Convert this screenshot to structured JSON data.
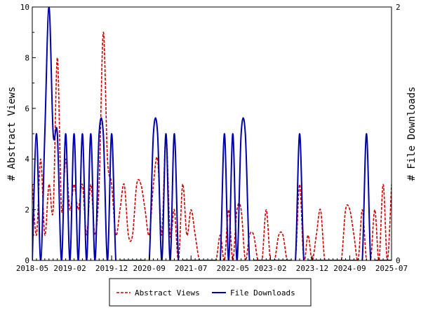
{
  "chart_data": {
    "type": "line",
    "ylabel_left": "# Abstract Views",
    "ylabel_right": "# File Downloads",
    "ylim_left": [
      0,
      10
    ],
    "ylim_right": [
      0,
      2
    ],
    "yticks_left": [
      "0",
      "2",
      "4",
      "6",
      "8",
      "10"
    ],
    "yticks_right": [
      "0",
      "2"
    ],
    "xlim": [
      "2018-05",
      "2025-07"
    ],
    "xtick_labels": [
      "2018-05",
      "2019-02",
      "2019-12",
      "2020-09",
      "2021-07",
      "2022-05",
      "2023-02",
      "2023-12",
      "2024-09",
      "2025-07"
    ],
    "grid": false,
    "legend_position": "bottom-center",
    "series": [
      {
        "name": "Abstract Views",
        "axis": "left",
        "color": "#cc0000",
        "style": "dashed",
        "months": [
          "2018-05",
          "2018-06",
          "2018-07",
          "2018-08",
          "2018-09",
          "2018-10",
          "2018-11",
          "2018-12",
          "2019-01",
          "2019-02",
          "2019-03",
          "2019-04",
          "2019-05",
          "2019-06",
          "2019-07",
          "2019-08",
          "2019-09",
          "2019-10",
          "2019-11",
          "2019-12",
          "2020-01",
          "2020-02",
          "2020-03",
          "2020-04",
          "2020-05",
          "2020-06",
          "2020-07",
          "2020-08",
          "2020-09",
          "2020-10",
          "2020-11",
          "2020-12",
          "2021-01",
          "2021-02",
          "2021-03",
          "2021-04",
          "2021-05",
          "2021-06",
          "2021-07",
          "2021-08",
          "2021-09",
          "2021-10",
          "2021-11",
          "2021-12",
          "2022-01",
          "2022-02",
          "2022-03",
          "2022-04",
          "2022-05",
          "2022-06",
          "2022-07",
          "2022-08",
          "2022-09",
          "2022-10",
          "2022-11",
          "2022-12",
          "2023-01",
          "2023-02",
          "2023-03",
          "2023-04",
          "2023-05",
          "2023-06",
          "2023-07",
          "2023-08",
          "2023-09",
          "2023-10",
          "2023-11",
          "2023-12",
          "2024-01",
          "2024-02",
          "2024-03",
          "2024-04",
          "2024-05",
          "2024-06",
          "2024-07",
          "2024-08",
          "2024-09",
          "2024-10",
          "2024-11",
          "2024-12",
          "2025-01",
          "2025-02",
          "2025-03",
          "2025-04",
          "2025-05",
          "2025-06",
          "2025-07"
        ],
        "values": [
          3,
          1,
          4,
          1,
          3,
          2,
          8,
          2,
          4,
          2,
          3,
          2,
          3,
          1,
          3,
          1,
          3,
          9,
          4,
          3,
          1,
          2,
          3,
          1,
          1,
          3,
          3,
          2,
          1,
          3,
          4,
          1,
          5,
          1,
          2,
          0,
          3,
          1,
          2,
          1,
          0,
          0,
          0,
          0,
          0,
          1,
          0,
          2,
          0,
          2,
          2,
          0,
          1,
          1,
          0,
          0,
          2,
          0,
          0,
          1,
          1,
          0,
          0,
          0,
          3,
          0,
          1,
          0,
          1,
          2,
          0,
          0,
          0,
          0,
          0,
          2,
          2,
          1,
          0,
          2,
          0,
          0,
          2,
          0,
          3,
          0,
          3
        ]
      },
      {
        "name": "File Downloads",
        "axis": "right",
        "color": "#0000aa",
        "style": "solid",
        "months": [
          "2018-05",
          "2018-06",
          "2018-07",
          "2018-08",
          "2018-09",
          "2018-10",
          "2018-11",
          "2018-12",
          "2019-01",
          "2019-02",
          "2019-03",
          "2019-04",
          "2019-05",
          "2019-06",
          "2019-07",
          "2019-08",
          "2019-09",
          "2019-10",
          "2019-11",
          "2019-12",
          "2020-01",
          "2020-02",
          "2020-03",
          "2020-04",
          "2020-05",
          "2020-06",
          "2020-07",
          "2020-08",
          "2020-09",
          "2020-10",
          "2020-11",
          "2020-12",
          "2021-01",
          "2021-02",
          "2021-03",
          "2021-04",
          "2021-05",
          "2021-06",
          "2021-07",
          "2021-08",
          "2021-09",
          "2021-10",
          "2021-11",
          "2021-12",
          "2022-01",
          "2022-02",
          "2022-03",
          "2022-04",
          "2022-05",
          "2022-06",
          "2022-07",
          "2022-08",
          "2022-09",
          "2022-10",
          "2022-11",
          "2022-12",
          "2023-01",
          "2023-02",
          "2023-03",
          "2023-04",
          "2023-05",
          "2023-06",
          "2023-07",
          "2023-08",
          "2023-09",
          "2023-10",
          "2023-11",
          "2023-12",
          "2024-01",
          "2024-02",
          "2024-03",
          "2024-04",
          "2024-05",
          "2024-06",
          "2024-07",
          "2024-08",
          "2024-09",
          "2024-10",
          "2024-11",
          "2024-12",
          "2025-01",
          "2025-02",
          "2025-03",
          "2025-04",
          "2025-05",
          "2025-06",
          "2025-07"
        ],
        "values": [
          0,
          1,
          0,
          1,
          2,
          1,
          1,
          0,
          1,
          0,
          1,
          0,
          1,
          0,
          1,
          0,
          1,
          1,
          0,
          1,
          0,
          0,
          0,
          0,
          0,
          0,
          0,
          0,
          0,
          1,
          1,
          0,
          1,
          0,
          1,
          0,
          0,
          0,
          0,
          0,
          0,
          0,
          0,
          0,
          0,
          0,
          1,
          0,
          1,
          0,
          1,
          1,
          0,
          0,
          0,
          0,
          0,
          0,
          0,
          0,
          0,
          0,
          0,
          0,
          1,
          0,
          0,
          0,
          0,
          0,
          0,
          0,
          0,
          0,
          0,
          0,
          0,
          0,
          0,
          0,
          1,
          0,
          0,
          0,
          0,
          0,
          0
        ]
      }
    ]
  }
}
